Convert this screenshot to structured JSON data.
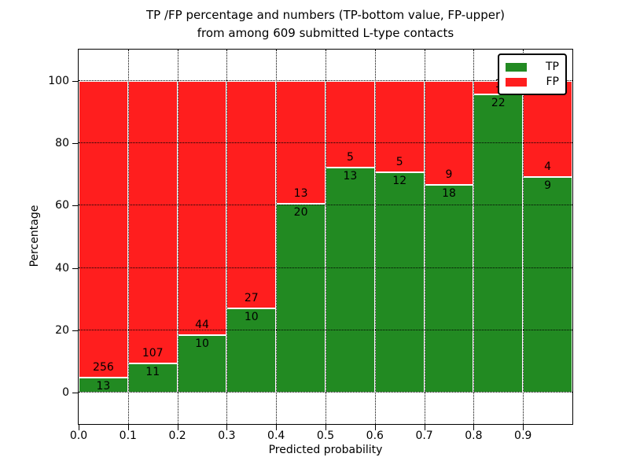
{
  "title": {
    "line1": "TP /FP percentage and numbers (TP-bottom value, FP-upper)",
    "line2": "from among 609 submitted L-type contacts"
  },
  "chart_data": {
    "type": "bar",
    "stacked": true,
    "title": "TP /FP percentage and numbers (TP-bottom value, FP-upper)\nfrom among 609 submitted L-type contacts",
    "xlabel": "Predicted probability",
    "ylabel": "Percentage",
    "xlim": [
      0.0,
      1.0
    ],
    "ylim": [
      -10,
      110
    ],
    "grid": true,
    "grid_style": "dotted",
    "legend_position": "upper right",
    "bin_width": 0.1,
    "bins": [
      "0.0-0.1",
      "0.1-0.2",
      "0.2-0.3",
      "0.3-0.4",
      "0.4-0.5",
      "0.5-0.6",
      "0.6-0.7",
      "0.7-0.8",
      "0.8-0.9",
      "0.9-1.0"
    ],
    "xtick_labels": [
      "0.0",
      "0.1",
      "0.2",
      "0.3",
      "0.4",
      "0.5",
      "0.6",
      "0.7",
      "0.8",
      "0.9"
    ],
    "xtick_values": [
      0.0,
      0.1,
      0.2,
      0.3,
      0.4,
      0.5,
      0.6,
      0.7,
      0.8,
      0.9
    ],
    "ytick_labels": [
      "0",
      "20",
      "40",
      "60",
      "80",
      "100"
    ],
    "ytick_values": [
      0,
      20,
      40,
      60,
      80,
      100
    ],
    "series": [
      {
        "name": "TP",
        "color": "#228a22",
        "counts": [
          13,
          11,
          10,
          10,
          20,
          13,
          12,
          18,
          22,
          9
        ]
      },
      {
        "name": "FP",
        "color": "#ff1e1e",
        "counts": [
          256,
          107,
          44,
          27,
          13,
          5,
          5,
          9,
          1,
          4
        ]
      }
    ],
    "tp_percent": [
      4.8,
      9.3,
      18.5,
      27.0,
      60.6,
      72.2,
      70.6,
      66.7,
      95.7,
      69.2
    ],
    "total_contacts": 609
  }
}
